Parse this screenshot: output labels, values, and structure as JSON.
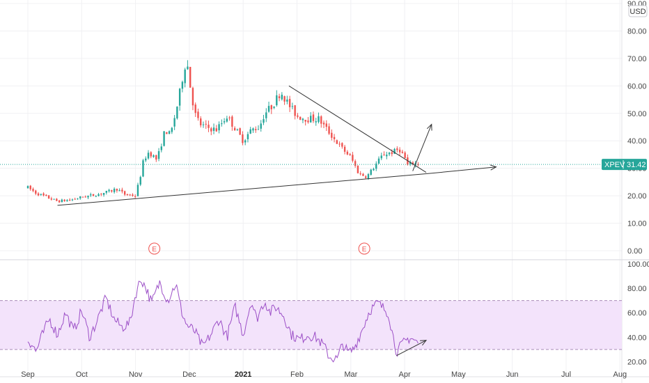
{
  "chart_data": [
    {
      "type": "candlestick",
      "symbol": "XPEV",
      "currency": "USD",
      "last_price": 31.42,
      "last_price_label": "31.42",
      "ylim": [
        0,
        90
      ],
      "y_ticks": [
        "0.00",
        "10.00",
        "20.00",
        "30.00",
        "40.00",
        "50.00",
        "60.00",
        "70.00",
        "80.00",
        "90.00"
      ],
      "x_ticks": [
        "Sep",
        "Oct",
        "Nov",
        "Dec",
        "2021",
        "Feb",
        "Mar",
        "Apr",
        "May",
        "Jun",
        "Jul",
        "Aug"
      ],
      "x_range_months": [
        0,
        12
      ],
      "anchors": [
        [
          0.0,
          23
        ],
        [
          0.15,
          21
        ],
        [
          0.35,
          19.5
        ],
        [
          0.55,
          18
        ],
        [
          0.8,
          18.5
        ],
        [
          1.0,
          19.5
        ],
        [
          1.3,
          20.5
        ],
        [
          1.5,
          21.5
        ],
        [
          1.65,
          22.5
        ],
        [
          1.8,
          20.5
        ],
        [
          2.0,
          20
        ],
        [
          2.05,
          24
        ],
        [
          2.1,
          28
        ],
        [
          2.15,
          33
        ],
        [
          2.25,
          36
        ],
        [
          2.4,
          33
        ],
        [
          2.55,
          44
        ],
        [
          2.65,
          42
        ],
        [
          2.8,
          55
        ],
        [
          2.9,
          66
        ],
        [
          2.95,
          70
        ],
        [
          3.0,
          62
        ],
        [
          3.1,
          50
        ],
        [
          3.2,
          46
        ],
        [
          3.3,
          45
        ],
        [
          3.5,
          44
        ],
        [
          3.7,
          49
        ],
        [
          3.9,
          43
        ],
        [
          4.0,
          40
        ],
        [
          4.15,
          44
        ],
        [
          4.3,
          45
        ],
        [
          4.4,
          50
        ],
        [
          4.55,
          53
        ],
        [
          4.7,
          58
        ],
        [
          4.85,
          53
        ],
        [
          5.0,
          49
        ],
        [
          5.2,
          48
        ],
        [
          5.4,
          48
        ],
        [
          5.6,
          43
        ],
        [
          5.8,
          38
        ],
        [
          6.0,
          34
        ],
        [
          6.15,
          28
        ],
        [
          6.3,
          27
        ],
        [
          6.45,
          31
        ],
        [
          6.6,
          35
        ],
        [
          6.8,
          36
        ],
        [
          6.9,
          37
        ],
        [
          7.0,
          34
        ],
        [
          7.05,
          31
        ],
        [
          7.15,
          32
        ],
        [
          7.25,
          31.5
        ]
      ],
      "earnings_markers": [
        {
          "label": "E",
          "month": 2.35
        },
        {
          "label": "E",
          "month": 6.25
        }
      ],
      "trendlines": [
        {
          "kind": "support",
          "points": [
            [
              0.55,
              16.5
            ],
            [
              7.4,
              28
            ]
          ]
        },
        {
          "kind": "resistance",
          "points": [
            [
              4.85,
              60
            ],
            [
              7.4,
              28.5
            ]
          ]
        },
        {
          "kind": "arrow",
          "points": [
            [
              7.4,
              28
            ],
            [
              8.7,
              30.5
            ]
          ]
        },
        {
          "kind": "arrow",
          "points": [
            [
              7.15,
              29
            ],
            [
              7.5,
              46
            ]
          ]
        }
      ]
    },
    {
      "type": "line",
      "indicator": "RSI",
      "ylim": [
        10,
        100
      ],
      "y_ticks": [
        "20.00",
        "40.00",
        "60.00",
        "80.00",
        "100.00"
      ],
      "band": [
        30,
        70
      ],
      "anchors": [
        [
          0.0,
          38
        ],
        [
          0.1,
          33
        ],
        [
          0.15,
          28
        ],
        [
          0.25,
          40
        ],
        [
          0.4,
          55
        ],
        [
          0.55,
          42
        ],
        [
          0.7,
          60
        ],
        [
          0.85,
          45
        ],
        [
          1.0,
          62
        ],
        [
          1.15,
          40
        ],
        [
          1.3,
          55
        ],
        [
          1.45,
          72
        ],
        [
          1.6,
          55
        ],
        [
          1.75,
          48
        ],
        [
          1.9,
          52
        ],
        [
          2.0,
          75
        ],
        [
          2.1,
          88
        ],
        [
          2.2,
          80
        ],
        [
          2.3,
          68
        ],
        [
          2.45,
          85
        ],
        [
          2.6,
          70
        ],
        [
          2.75,
          84
        ],
        [
          2.85,
          62
        ],
        [
          2.95,
          50
        ],
        [
          3.1,
          45
        ],
        [
          3.25,
          32
        ],
        [
          3.4,
          42
        ],
        [
          3.55,
          55
        ],
        [
          3.7,
          40
        ],
        [
          3.85,
          65
        ],
        [
          4.0,
          42
        ],
        [
          4.15,
          70
        ],
        [
          4.25,
          55
        ],
        [
          4.4,
          70
        ],
        [
          4.5,
          60
        ],
        [
          4.6,
          65
        ],
        [
          4.75,
          58
        ],
        [
          4.9,
          42
        ],
        [
          5.05,
          38
        ],
        [
          5.2,
          42
        ],
        [
          5.35,
          40
        ],
        [
          5.5,
          33
        ],
        [
          5.6,
          24
        ],
        [
          5.75,
          22
        ],
        [
          5.85,
          35
        ],
        [
          5.95,
          27
        ],
        [
          6.05,
          30
        ],
        [
          6.2,
          45
        ],
        [
          6.35,
          62
        ],
        [
          6.5,
          68
        ],
        [
          6.6,
          64
        ],
        [
          6.7,
          60
        ],
        [
          6.75,
          48
        ],
        [
          6.85,
          28
        ],
        [
          6.95,
          34
        ],
        [
          7.1,
          40
        ],
        [
          7.2,
          37
        ],
        [
          7.25,
          35
        ]
      ],
      "trendlines": [
        {
          "kind": "arrow",
          "points": [
            [
              6.85,
              25
            ],
            [
              7.4,
              37.5
            ]
          ]
        }
      ]
    }
  ]
}
